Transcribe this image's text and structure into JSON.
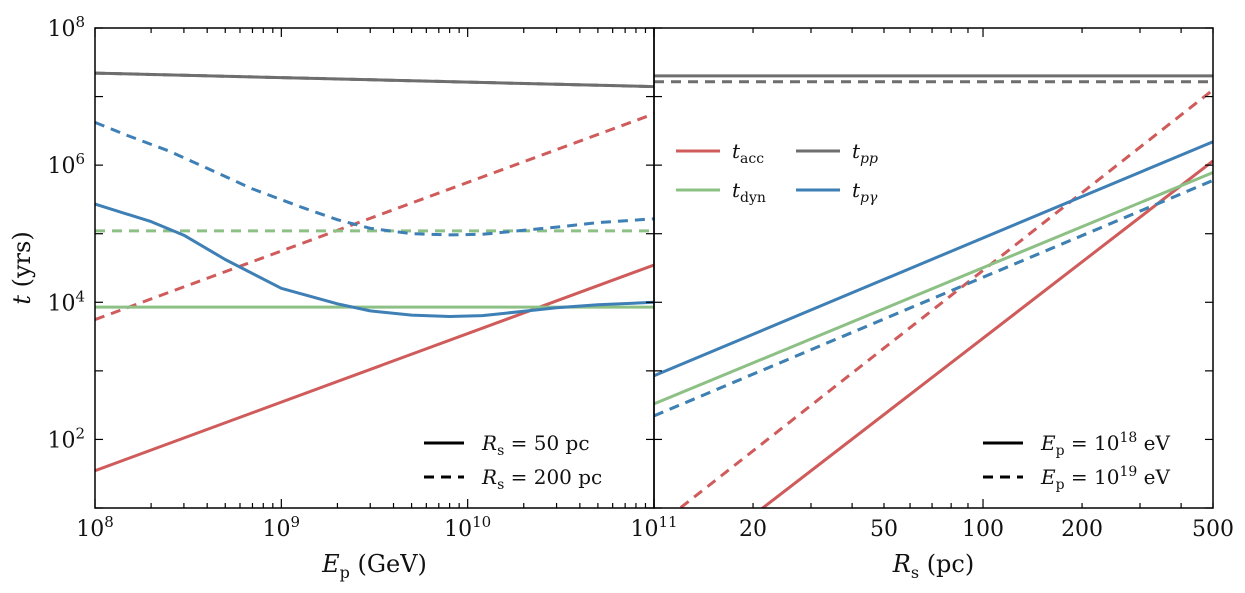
{
  "chart_data": [
    {
      "type": "line",
      "xscale": "log",
      "yscale": "log",
      "xlim": [
        100000000.0,
        100000000000.0
      ],
      "ylim": [
        10,
        100000000.0
      ],
      "xlabel": "E_p (GeV)",
      "ylabel": "t (yrs)",
      "xticks": [
        {
          "base": "10",
          "exp": "8",
          "v": 100000000.0
        },
        {
          "base": "10",
          "exp": "9",
          "v": 1000000000.0
        },
        {
          "base": "10",
          "exp": "10",
          "v": 10000000000.0
        },
        {
          "base": "10",
          "exp": "11",
          "v": 100000000000.0
        }
      ],
      "yticks": [
        {
          "base": "10",
          "exp": "2",
          "v": 100
        },
        {
          "base": "10",
          "exp": "4",
          "v": 10000
        },
        {
          "base": "10",
          "exp": "6",
          "v": 1000000
        },
        {
          "base": "10",
          "exp": "8",
          "v": 100000000
        }
      ],
      "legend": {
        "placement": "lower-right",
        "entries": [
          {
            "style": "solid",
            "label_main": "R",
            "label_sub": "s",
            "label_rest": " = 50 pc"
          },
          {
            "style": "dashed",
            "label_main": "R",
            "label_sub": "s",
            "label_rest": " = 200 pc"
          }
        ]
      },
      "series": [
        {
          "name": "t_pp",
          "color": "#6e6e6e",
          "dash": false,
          "points": [
            [
              100000000.0,
              22000000.0
            ],
            [
              100000000000.0,
              14000000.0
            ]
          ]
        },
        {
          "name": "t_pp",
          "color": "#6e6e6e",
          "dash": true,
          "points": [
            [
              100000000.0,
              22000000.0
            ],
            [
              100000000000.0,
              14000000.0
            ]
          ]
        },
        {
          "name": "t_acc",
          "color": "#cf5b5b",
          "dash": false,
          "points": [
            [
              100000000.0,
              35
            ],
            [
              100000000000.0,
              35000
            ]
          ]
        },
        {
          "name": "t_acc",
          "color": "#cf5b5b",
          "dash": true,
          "points": [
            [
              100000000.0,
              5600
            ],
            [
              100000000000.0,
              5600000
            ]
          ]
        },
        {
          "name": "t_dyn",
          "color": "#8cc084",
          "dash": false,
          "points": [
            [
              100000000.0,
              8500
            ],
            [
              100000000000.0,
              8500
            ]
          ]
        },
        {
          "name": "t_dyn",
          "color": "#8cc084",
          "dash": true,
          "points": [
            [
              100000000.0,
              110000
            ],
            [
              100000000000.0,
              110000
            ]
          ]
        },
        {
          "name": "t_pgamma",
          "color": "#3e7fb5",
          "dash": false,
          "points": [
            [
              100000000.0,
              270000
            ],
            [
              200000000.0,
              150000
            ],
            [
              300000000.0,
              95000
            ],
            [
              500000000.0,
              42000
            ],
            [
              1000000000.0,
              16000
            ],
            [
              2000000000.0,
              9500
            ],
            [
              3000000000.0,
              7500
            ],
            [
              5000000000.0,
              6500
            ],
            [
              8000000000.0,
              6200
            ],
            [
              12000000000.0,
              6400
            ],
            [
              20000000000.0,
              7400
            ],
            [
              30000000000.0,
              8300
            ],
            [
              50000000000.0,
              9200
            ],
            [
              100000000000.0,
              10000
            ]
          ]
        },
        {
          "name": "t_pgamma",
          "color": "#3e7fb5",
          "dash": true,
          "points": [
            [
              100000000.0,
              4200000
            ],
            [
              150000000.0,
              2700000
            ],
            [
              250000000.0,
              1600000
            ],
            [
              400000000.0,
              900000
            ],
            [
              700000000.0,
              450000
            ],
            [
              1300000000.0,
              240000
            ],
            [
              2000000000.0,
              160000
            ],
            [
              3000000000.0,
              120000
            ],
            [
              5000000000.0,
              100000
            ],
            [
              8000000000.0,
              96000
            ],
            [
              12000000000.0,
              98000
            ],
            [
              20000000000.0,
              112000
            ],
            [
              30000000000.0,
              125000
            ],
            [
              50000000000.0,
              145000
            ],
            [
              100000000000.0,
              165000
            ]
          ]
        }
      ]
    },
    {
      "type": "line",
      "xscale": "log",
      "yscale": "log",
      "xlim": [
        10,
        500
      ],
      "ylim": [
        10,
        100000000.0
      ],
      "xlabel": "R_s (pc)",
      "xticks": [
        {
          "text": "20",
          "v": 20
        },
        {
          "text": "50",
          "v": 50
        },
        {
          "text": "100",
          "v": 100
        },
        {
          "text": "200",
          "v": 200
        },
        {
          "text": "500",
          "v": 500
        }
      ],
      "legend_lines": {
        "placement": "upper-left",
        "entries": [
          {
            "color": "#cf5b5b",
            "label_main": "t",
            "label_sub": "acc"
          },
          {
            "color": "#6e6e6e",
            "label_main": "t",
            "label_sub": "pp"
          },
          {
            "color": "#8cc084",
            "label_main": "t",
            "label_sub": "dyn"
          },
          {
            "color": "#3e7fb5",
            "label_main": "t",
            "label_sub": "pγ"
          }
        ]
      },
      "legend": {
        "placement": "lower-right",
        "entries": [
          {
            "style": "solid",
            "label_main": "E",
            "label_sub": "p",
            "label_rest": " = 10",
            "label_sup": "18",
            "label_unit": " eV"
          },
          {
            "style": "dashed",
            "label_main": "E",
            "label_sub": "p",
            "label_rest": " = 10",
            "label_sup": "19",
            "label_unit": " eV"
          }
        ]
      },
      "series": [
        {
          "name": "t_pp",
          "color": "#6e6e6e",
          "dash": false,
          "points": [
            [
              10,
              20000000.0
            ],
            [
              500,
              20000000.0
            ]
          ]
        },
        {
          "name": "t_pp",
          "color": "#6e6e6e",
          "dash": true,
          "points": [
            [
              10,
              16500000.0
            ],
            [
              500,
              16500000.0
            ]
          ]
        },
        {
          "name": "t_acc",
          "color": "#cf5b5b",
          "dash": false,
          "points": [
            [
              10,
              0.6
            ],
            [
              500,
              1150000
            ]
          ]
        },
        {
          "name": "t_acc",
          "color": "#cf5b5b",
          "dash": true,
          "points": [
            [
              10,
              5
            ],
            [
              500,
              12500000.0
            ]
          ]
        },
        {
          "name": "t_dyn",
          "color": "#8cc084",
          "dash": false,
          "points": [
            [
              10,
              330
            ],
            [
              500,
              780000
            ]
          ]
        },
        {
          "name": "t_dyn",
          "color": "#8cc084",
          "dash": true,
          "points": [
            [
              10,
              220
            ],
            [
              500,
              600000
            ]
          ]
        },
        {
          "name": "t_pgamma",
          "color": "#3e7fb5",
          "dash": false,
          "points": [
            [
              10,
              850
            ],
            [
              500,
              2200000
            ]
          ]
        },
        {
          "name": "t_pgamma",
          "color": "#3e7fb5",
          "dash": true,
          "points": [
            [
              10,
              220
            ],
            [
              500,
              600000
            ]
          ]
        }
      ]
    }
  ]
}
